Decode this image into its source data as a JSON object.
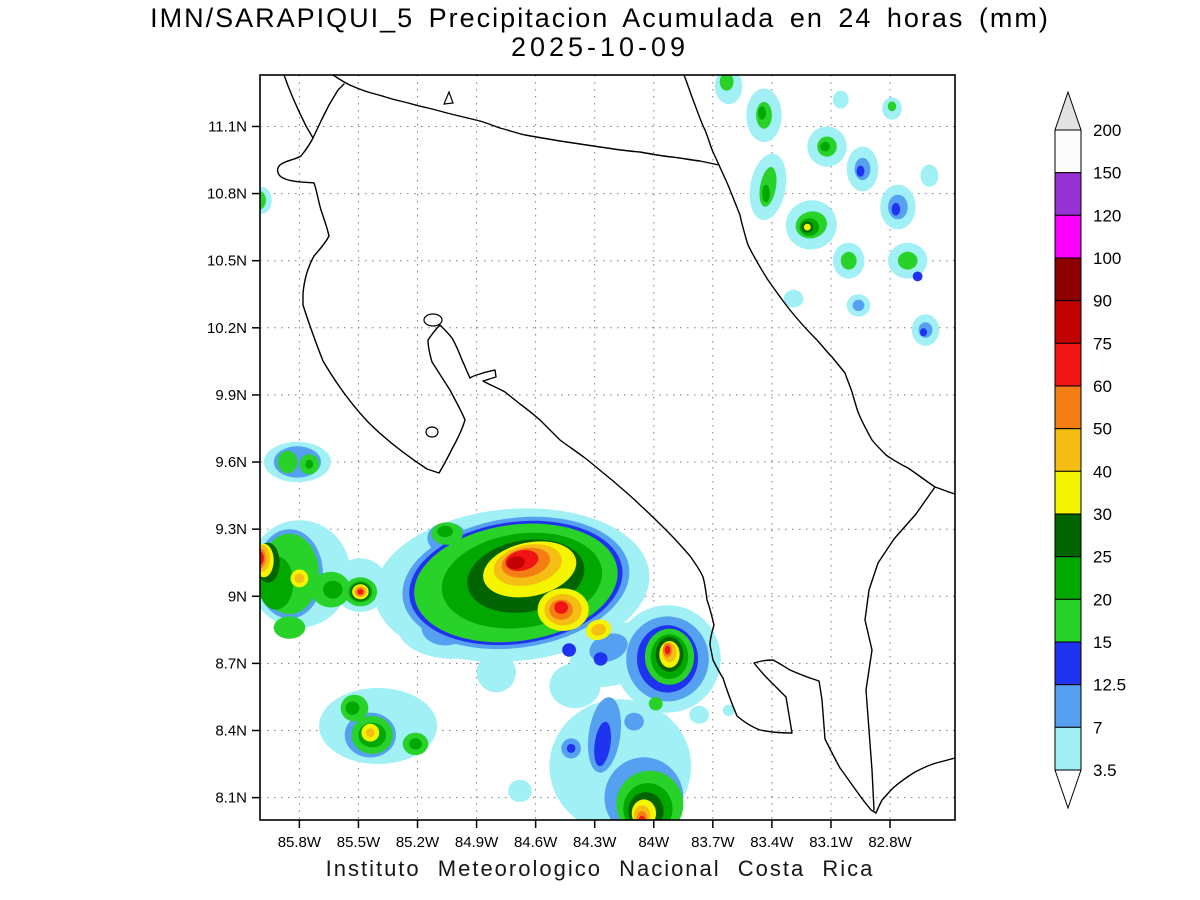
{
  "header": {
    "title_line1": "IMN/SARAPIQUI_5 Precipitacion Acumulada en 24 horas (mm)",
    "title_line2": "2025-10-09"
  },
  "footer": {
    "credit": "Instituto Meteorologico Nacional Costa Rica"
  },
  "chart_data": {
    "type": "heatmap",
    "title": "IMN/SARAPIQUI_5 Precipitacion Acumulada en 24 horas (mm)",
    "date": "2025-10-09",
    "units": "mm",
    "region": "Costa Rica",
    "extent": {
      "lon_west": 86.0,
      "lon_east": 82.47,
      "lat_north": 11.33,
      "lat_south": 8.0
    },
    "x_axis": {
      "values": [
        85.8,
        85.5,
        85.2,
        84.9,
        84.6,
        84.3,
        84.0,
        83.7,
        83.4,
        83.1,
        82.8
      ],
      "labels": [
        "85.8W",
        "85.5W",
        "85.2W",
        "84.9W",
        "84.6W",
        "84.3W",
        "84W",
        "83.7W",
        "83.4W",
        "83.1W",
        "82.8W"
      ]
    },
    "y_axis": {
      "values": [
        11.1,
        10.8,
        10.5,
        10.2,
        9.9,
        9.6,
        9.3,
        9.0,
        8.7,
        8.4,
        8.1
      ],
      "labels": [
        "11.1N",
        "10.8N",
        "10.5N",
        "10.2N",
        "9.9N",
        "9.6N",
        "9.3N",
        "9N",
        "8.7N",
        "8.4N",
        "8.1N"
      ]
    },
    "colorbar": {
      "boundaries": [
        200,
        150,
        120,
        100,
        90,
        75,
        60,
        50,
        40,
        30,
        25,
        20,
        15,
        12.5,
        7,
        3.5
      ],
      "labels": [
        "200",
        "150",
        "120",
        "100",
        "90",
        "75",
        "60",
        "50",
        "40",
        "30",
        "25",
        "20",
        "15",
        "12.5",
        "7",
        "3.5"
      ],
      "under_color": "#ffffff"
    },
    "palette": {
      "3.5": "#a0f0f5",
      "7": "#55a0f0",
      "12.5": "#1e32f0",
      "15": "#28d228",
      "20": "#00a800",
      "25": "#006400",
      "30": "#f5f500",
      "40": "#f5be14",
      "50": "#f57e14",
      "60": "#f01414",
      "75": "#c10000",
      "90": "#8c0000",
      "100": "#fa00fa",
      "120": "#9632d2",
      "150": "#fcfcfc",
      "200": "#e2e2e2"
    },
    "cells_format": [
      "lon_w_deg",
      "lat_n_deg",
      "rx_deg",
      "ry_deg",
      "rotation_deg",
      "mm_level_min"
    ],
    "precip_cells": [
      [
        83.44,
        11.15,
        0.09,
        0.12,
        0,
        3.5
      ],
      [
        83.44,
        11.15,
        0.04,
        0.06,
        0,
        15
      ],
      [
        83.45,
        11.16,
        0.02,
        0.03,
        0,
        20
      ],
      [
        83.12,
        11.01,
        0.1,
        0.09,
        0,
        3.5
      ],
      [
        83.12,
        11.01,
        0.05,
        0.045,
        0,
        15
      ],
      [
        83.13,
        11.01,
        0.025,
        0.022,
        0,
        20
      ],
      [
        83.42,
        10.83,
        0.09,
        0.15,
        10,
        3.5
      ],
      [
        83.42,
        10.83,
        0.04,
        0.09,
        10,
        15
      ],
      [
        83.43,
        10.8,
        0.02,
        0.04,
        0,
        20
      ],
      [
        82.94,
        10.91,
        0.08,
        0.1,
        0,
        3.5
      ],
      [
        82.94,
        10.91,
        0.04,
        0.05,
        0,
        7
      ],
      [
        82.95,
        10.9,
        0.02,
        0.025,
        0,
        12.5
      ],
      [
        82.76,
        10.74,
        0.09,
        0.1,
        0,
        3.5
      ],
      [
        82.76,
        10.74,
        0.05,
        0.055,
        0,
        7
      ],
      [
        82.77,
        10.73,
        0.022,
        0.028,
        0,
        12.5
      ],
      [
        83.2,
        10.66,
        0.13,
        0.11,
        -15,
        3.5
      ],
      [
        83.2,
        10.66,
        0.08,
        0.06,
        -15,
        15
      ],
      [
        83.21,
        10.65,
        0.05,
        0.04,
        0,
        20
      ],
      [
        83.22,
        10.65,
        0.03,
        0.025,
        0,
        25
      ],
      [
        83.22,
        10.65,
        0.018,
        0.015,
        0,
        30
      ],
      [
        83.01,
        10.5,
        0.08,
        0.08,
        0,
        3.5
      ],
      [
        83.01,
        10.5,
        0.04,
        0.04,
        0,
        15
      ],
      [
        82.71,
        10.5,
        0.1,
        0.08,
        0,
        3.5
      ],
      [
        82.71,
        10.5,
        0.05,
        0.04,
        0,
        15
      ],
      [
        82.66,
        10.43,
        0.025,
        0.022,
        0,
        12.5
      ],
      [
        82.96,
        10.3,
        0.06,
        0.05,
        0,
        3.5
      ],
      [
        82.96,
        10.3,
        0.03,
        0.025,
        0,
        7
      ],
      [
        82.62,
        10.19,
        0.07,
        0.07,
        0,
        3.5
      ],
      [
        82.62,
        10.19,
        0.035,
        0.035,
        0,
        7
      ],
      [
        82.63,
        10.18,
        0.018,
        0.018,
        0,
        12.5
      ],
      [
        83.29,
        10.33,
        0.05,
        0.04,
        0,
        3.5
      ],
      [
        83.62,
        11.28,
        0.07,
        0.08,
        0,
        3.5
      ],
      [
        83.63,
        11.3,
        0.035,
        0.04,
        0,
        15
      ],
      [
        82.79,
        11.18,
        0.05,
        0.05,
        0,
        3.5
      ],
      [
        82.79,
        11.19,
        0.022,
        0.022,
        0,
        15
      ],
      [
        83.05,
        11.22,
        0.04,
        0.04,
        0,
        3.5
      ],
      [
        82.6,
        10.88,
        0.045,
        0.05,
        0,
        3.5
      ],
      [
        85.99,
        10.77,
        0.05,
        0.06,
        0,
        3.5
      ],
      [
        86.0,
        10.77,
        0.03,
        0.04,
        0,
        15
      ],
      [
        85.81,
        9.6,
        0.17,
        0.09,
        0,
        3.5
      ],
      [
        85.81,
        9.6,
        0.12,
        0.07,
        0,
        7
      ],
      [
        85.86,
        9.6,
        0.05,
        0.05,
        0,
        15
      ],
      [
        85.75,
        9.59,
        0.05,
        0.045,
        0,
        15
      ],
      [
        85.75,
        9.59,
        0.02,
        0.02,
        0,
        20
      ],
      [
        85.8,
        9.1,
        0.26,
        0.24,
        0,
        3.5
      ],
      [
        85.85,
        9.1,
        0.17,
        0.2,
        0,
        7
      ],
      [
        85.85,
        9.1,
        0.15,
        0.18,
        0,
        15
      ],
      [
        85.92,
        9.06,
        0.09,
        0.12,
        0,
        20
      ],
      [
        85.96,
        9.15,
        0.06,
        0.09,
        0,
        25
      ],
      [
        85.98,
        9.16,
        0.05,
        0.075,
        0,
        30
      ],
      [
        85.99,
        9.17,
        0.04,
        0.06,
        0,
        40
      ],
      [
        86.0,
        9.17,
        0.03,
        0.045,
        0,
        50
      ],
      [
        86.0,
        9.17,
        0.02,
        0.03,
        0,
        60
      ],
      [
        85.8,
        9.08,
        0.045,
        0.04,
        0,
        30
      ],
      [
        85.8,
        9.08,
        0.025,
        0.022,
        0,
        40
      ],
      [
        85.85,
        8.86,
        0.08,
        0.05,
        0,
        15
      ],
      [
        85.64,
        9.03,
        0.1,
        0.08,
        0,
        15
      ],
      [
        85.63,
        9.03,
        0.05,
        0.04,
        0,
        20
      ],
      [
        85.49,
        9.05,
        0.14,
        0.12,
        0,
        3.5
      ],
      [
        85.49,
        9.02,
        0.085,
        0.065,
        0,
        15
      ],
      [
        85.49,
        9.02,
        0.06,
        0.047,
        0,
        20
      ],
      [
        85.49,
        9.02,
        0.05,
        0.04,
        0,
        25
      ],
      [
        85.49,
        9.02,
        0.042,
        0.034,
        0,
        30
      ],
      [
        85.49,
        9.02,
        0.032,
        0.026,
        0,
        40
      ],
      [
        85.49,
        9.02,
        0.023,
        0.019,
        0,
        50
      ],
      [
        85.49,
        9.02,
        0.014,
        0.012,
        0,
        60
      ],
      [
        84.72,
        9.05,
        0.7,
        0.34,
        -5,
        3.5
      ],
      [
        85.02,
        8.86,
        0.28,
        0.14,
        0,
        3.5
      ],
      [
        84.18,
        8.74,
        0.26,
        0.13,
        -20,
        3.5
      ],
      [
        84.7,
        9.06,
        0.58,
        0.29,
        -8,
        7
      ],
      [
        85.05,
        9.26,
        0.1,
        0.07,
        0,
        7
      ],
      [
        84.86,
        9.02,
        0.09,
        0.06,
        0,
        7
      ],
      [
        85.06,
        8.86,
        0.12,
        0.08,
        0,
        7
      ],
      [
        84.23,
        8.77,
        0.1,
        0.06,
        -20,
        7
      ],
      [
        84.7,
        9.06,
        0.545,
        0.272,
        -8,
        12.5
      ],
      [
        84.43,
        8.76,
        0.035,
        0.03,
        0,
        12.5
      ],
      [
        84.27,
        8.72,
        0.035,
        0.03,
        0,
        12.5
      ],
      [
        85.18,
        9.08,
        0.03,
        0.03,
        0,
        12.5
      ],
      [
        84.7,
        9.06,
        0.52,
        0.26,
        -8,
        15
      ],
      [
        84.67,
        9.07,
        0.41,
        0.21,
        -8,
        20
      ],
      [
        84.65,
        9.09,
        0.3,
        0.16,
        -10,
        25
      ],
      [
        84.63,
        9.12,
        0.24,
        0.12,
        -12,
        30
      ],
      [
        84.64,
        9.14,
        0.175,
        0.09,
        -12,
        40
      ],
      [
        84.65,
        9.15,
        0.125,
        0.065,
        -12,
        50
      ],
      [
        84.67,
        9.16,
        0.085,
        0.045,
        -12,
        60
      ],
      [
        84.7,
        9.15,
        0.045,
        0.028,
        -12,
        75
      ],
      [
        84.46,
        8.94,
        0.13,
        0.095,
        0,
        30
      ],
      [
        84.46,
        8.94,
        0.095,
        0.07,
        0,
        40
      ],
      [
        84.47,
        8.94,
        0.06,
        0.045,
        0,
        50
      ],
      [
        84.47,
        8.95,
        0.035,
        0.028,
        0,
        60
      ],
      [
        84.28,
        8.85,
        0.065,
        0.045,
        -15,
        30
      ],
      [
        84.28,
        8.85,
        0.038,
        0.026,
        -15,
        40
      ],
      [
        85.05,
        9.28,
        0.08,
        0.05,
        0,
        15
      ],
      [
        85.06,
        9.29,
        0.04,
        0.025,
        0,
        20
      ],
      [
        83.93,
        8.72,
        0.27,
        0.24,
        0,
        3.5
      ],
      [
        83.93,
        8.72,
        0.21,
        0.19,
        0,
        7
      ],
      [
        83.93,
        8.72,
        0.155,
        0.15,
        0,
        12.5
      ],
      [
        83.92,
        8.73,
        0.125,
        0.125,
        0,
        15
      ],
      [
        83.92,
        8.73,
        0.095,
        0.1,
        0,
        20
      ],
      [
        83.92,
        8.74,
        0.07,
        0.078,
        0,
        25
      ],
      [
        83.92,
        8.74,
        0.052,
        0.06,
        0,
        30
      ],
      [
        83.92,
        8.75,
        0.036,
        0.045,
        0,
        40
      ],
      [
        83.93,
        8.76,
        0.024,
        0.032,
        0,
        50
      ],
      [
        83.93,
        8.76,
        0.014,
        0.02,
        0,
        60
      ],
      [
        83.77,
        8.47,
        0.05,
        0.04,
        0,
        3.5
      ],
      [
        83.62,
        8.49,
        0.03,
        0.025,
        0,
        3.5
      ],
      [
        85.4,
        8.42,
        0.3,
        0.17,
        0,
        3.5
      ],
      [
        85.52,
        8.5,
        0.07,
        0.06,
        0,
        15
      ],
      [
        85.53,
        8.5,
        0.035,
        0.03,
        0,
        20
      ],
      [
        85.44,
        8.38,
        0.13,
        0.1,
        0,
        7
      ],
      [
        85.43,
        8.38,
        0.105,
        0.085,
        0,
        15
      ],
      [
        85.43,
        8.38,
        0.07,
        0.055,
        0,
        20
      ],
      [
        85.44,
        8.39,
        0.045,
        0.04,
        0,
        30
      ],
      [
        85.44,
        8.39,
        0.022,
        0.02,
        0,
        40
      ],
      [
        85.21,
        8.34,
        0.065,
        0.05,
        0,
        15
      ],
      [
        85.21,
        8.34,
        0.032,
        0.025,
        0,
        20
      ],
      [
        84.17,
        8.24,
        0.36,
        0.3,
        0,
        3.5
      ],
      [
        84.05,
        8.1,
        0.2,
        0.18,
        0,
        7
      ],
      [
        84.25,
        8.38,
        0.08,
        0.17,
        8,
        7
      ],
      [
        84.26,
        8.34,
        0.04,
        0.1,
        8,
        12.5
      ],
      [
        84.42,
        8.32,
        0.05,
        0.045,
        0,
        7
      ],
      [
        84.42,
        8.32,
        0.022,
        0.02,
        0,
        12.5
      ],
      [
        84.03,
        8.07,
        0.145,
        0.135,
        0,
        12.5
      ],
      [
        84.02,
        8.07,
        0.17,
        0.15,
        0,
        15
      ],
      [
        84.03,
        8.05,
        0.125,
        0.115,
        0,
        20
      ],
      [
        84.04,
        8.04,
        0.09,
        0.085,
        0,
        25
      ],
      [
        84.05,
        8.03,
        0.062,
        0.062,
        0,
        30
      ],
      [
        84.06,
        8.02,
        0.042,
        0.045,
        0,
        40
      ],
      [
        84.06,
        8.01,
        0.026,
        0.03,
        0,
        50
      ],
      [
        84.06,
        8.0,
        0.015,
        0.02,
        0,
        60
      ],
      [
        84.68,
        8.13,
        0.06,
        0.05,
        0,
        3.5
      ],
      [
        84.4,
        8.6,
        0.13,
        0.1,
        0,
        3.5
      ],
      [
        84.8,
        8.66,
        0.1,
        0.09,
        0,
        3.5
      ],
      [
        83.99,
        8.52,
        0.035,
        0.03,
        0,
        15
      ],
      [
        84.1,
        8.44,
        0.05,
        0.04,
        0,
        7
      ]
    ]
  }
}
